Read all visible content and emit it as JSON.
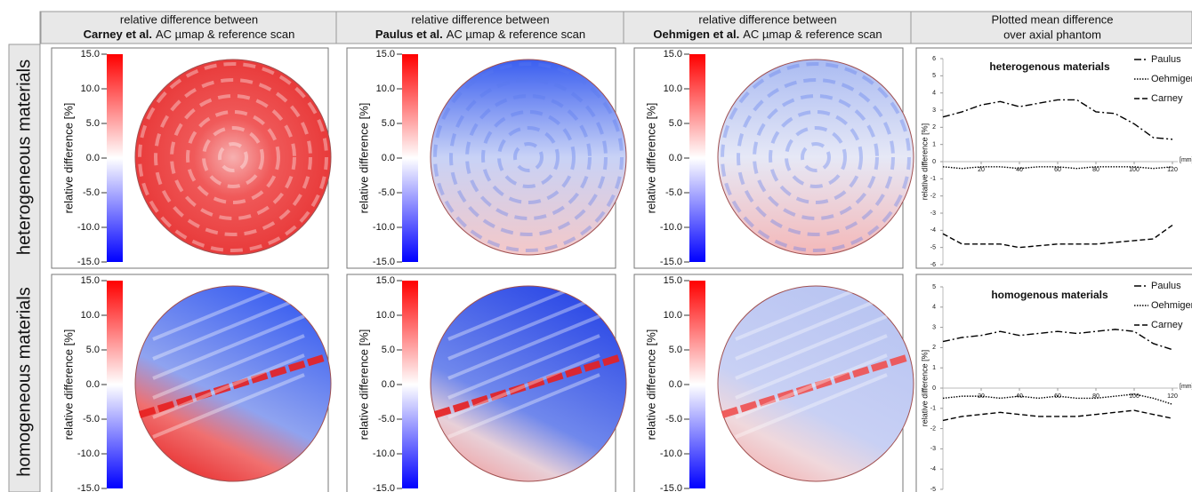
{
  "header": {
    "columns": [
      {
        "line1": "relative difference between",
        "bold": "Carney et al.",
        "rest": "AC µmap & reference scan"
      },
      {
        "line1": "relative difference between",
        "bold": "Paulus et al.",
        "rest": "AC µmap & reference scan"
      },
      {
        "line1": "relative difference between",
        "bold": "Oehmigen et al.",
        "rest": "AC µmap & reference scan"
      },
      {
        "line1": "Plotted mean difference",
        "line2": "over axial phantom"
      }
    ]
  },
  "rows": [
    "heterogeneous materials",
    "homogeneous materials"
  ],
  "colorbar": {
    "label": "relative difference  [%]",
    "lim": [
      -15,
      15
    ],
    "ticks": [
      {
        "value": 15,
        "label": "15.0"
      },
      {
        "value": 10,
        "label": "10.0"
      },
      {
        "value": 5,
        "label": "5.0"
      },
      {
        "value": 0,
        "label": "0.0"
      },
      {
        "value": -5,
        "label": "-5.0"
      },
      {
        "value": -10,
        "label": "-10.0"
      },
      {
        "value": -15,
        "label": "-15.0"
      }
    ]
  },
  "chart_data": [
    {
      "type": "line",
      "annotation": "heterogenous materials",
      "y_label": "relative difference [%]",
      "x_label": "[mm]",
      "x": [
        0,
        10,
        20,
        30,
        40,
        50,
        60,
        70,
        80,
        90,
        100,
        110,
        120
      ],
      "xlim": [
        0,
        120
      ],
      "xticks": [
        20,
        40,
        60,
        80,
        100,
        120
      ],
      "ylim": [
        -6,
        6
      ],
      "yticks": [
        6,
        5,
        4,
        3,
        2,
        1,
        0,
        -1,
        -2,
        -3,
        -4,
        -5,
        -6
      ],
      "legend": "top-right",
      "series": [
        {
          "name": "Paulus",
          "color": "#000000",
          "dash": "8 3 2 3",
          "values": [
            2.6,
            2.9,
            3.3,
            3.5,
            3.2,
            3.4,
            3.6,
            3.6,
            2.9,
            2.8,
            2.2,
            1.4,
            1.3
          ]
        },
        {
          "name": "Oehmigen",
          "color": "#000000",
          "dash": "1.5 1.5",
          "values": [
            -0.3,
            -0.4,
            -0.3,
            -0.3,
            -0.4,
            -0.3,
            -0.3,
            -0.4,
            -0.3,
            -0.3,
            -0.3,
            -0.4,
            -0.3
          ]
        },
        {
          "name": "Carney",
          "color": "#000000",
          "dash": "6 3",
          "values": [
            -4.2,
            -4.8,
            -4.8,
            -4.8,
            -5.0,
            -4.9,
            -4.8,
            -4.8,
            -4.8,
            -4.7,
            -4.6,
            -4.5,
            -3.7
          ]
        }
      ]
    },
    {
      "type": "line",
      "annotation": "homogenous materials",
      "y_label": "relative difference [%]",
      "x_label": "[mm]",
      "x": [
        0,
        10,
        20,
        30,
        40,
        50,
        60,
        70,
        80,
        90,
        100,
        110,
        120
      ],
      "xlim": [
        0,
        120
      ],
      "xticks": [
        20,
        40,
        60,
        80,
        100,
        120
      ],
      "ylim": [
        -5,
        5
      ],
      "yticks": [
        5,
        4,
        3,
        2,
        1,
        0,
        -1,
        -2,
        -3,
        -4,
        -5
      ],
      "legend": "top-right",
      "series": [
        {
          "name": "Paulus",
          "color": "#000000",
          "dash": "8 3 2 3",
          "values": [
            2.3,
            2.5,
            2.6,
            2.8,
            2.6,
            2.7,
            2.8,
            2.7,
            2.8,
            2.9,
            2.8,
            2.2,
            1.9
          ]
        },
        {
          "name": "Oehmigen",
          "color": "#000000",
          "dash": "1.5 1.5",
          "values": [
            -0.5,
            -0.4,
            -0.4,
            -0.5,
            -0.4,
            -0.5,
            -0.4,
            -0.5,
            -0.5,
            -0.4,
            -0.3,
            -0.5,
            -0.8
          ]
        },
        {
          "name": "Carney",
          "color": "#000000",
          "dash": "6 3",
          "values": [
            -1.6,
            -1.4,
            -1.3,
            -1.2,
            -1.3,
            -1.4,
            -1.4,
            -1.4,
            -1.3,
            -1.2,
            -1.1,
            -1.3,
            -1.5
          ]
        }
      ]
    }
  ]
}
